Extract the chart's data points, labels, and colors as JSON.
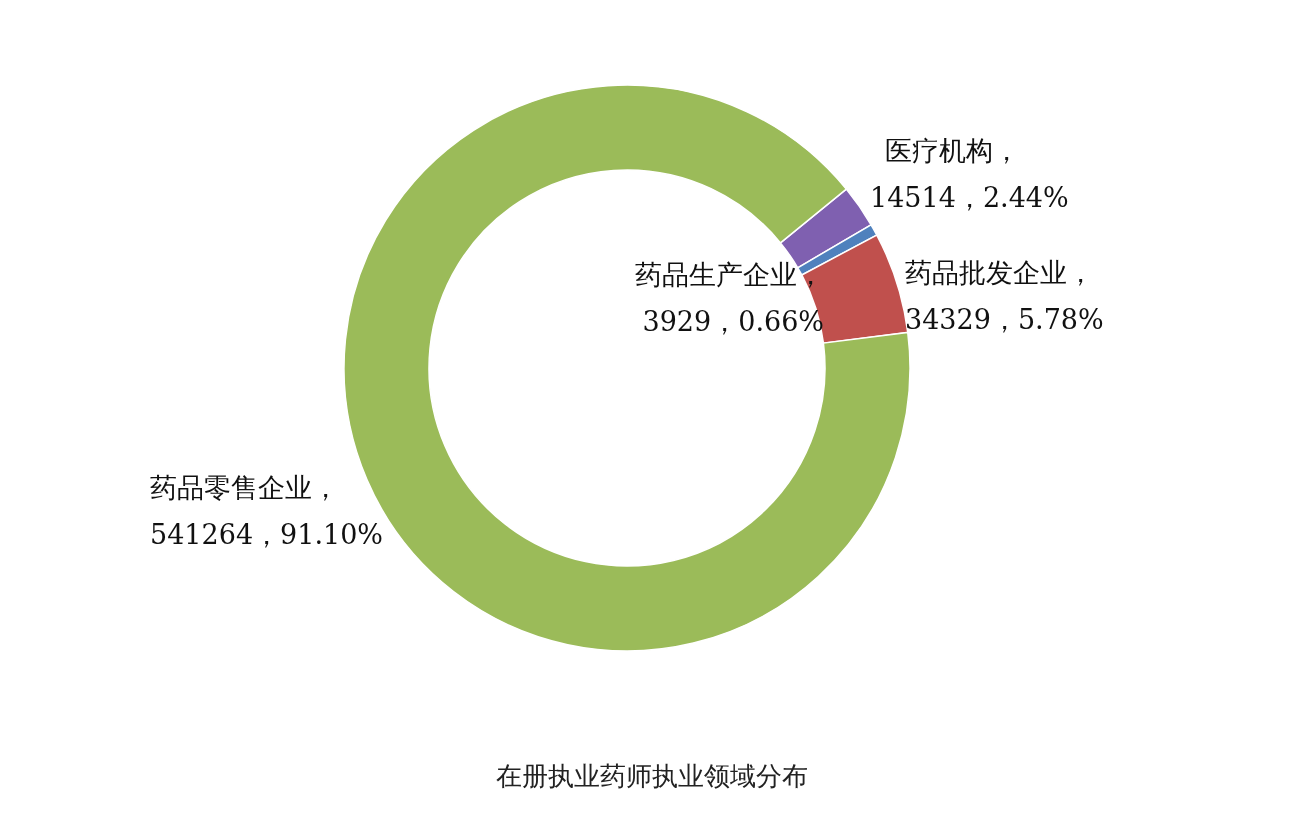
{
  "chart_data": {
    "type": "donut",
    "title": "在册执业药师执业领域分布",
    "categories": [
      "医疗机构",
      "药品生产企业",
      "药品批发企业",
      "药品零售企业"
    ],
    "values": [
      14514,
      3929,
      34329,
      541264
    ],
    "value_labels": [
      "，14514，2.44%",
      "，3929，0.66%",
      "，34329，5.78%",
      "，541264，91.10%"
    ],
    "colors": [
      "#7f60b0",
      "#4f81bd",
      "#c0504d",
      "#9bbb59"
    ],
    "legend": false
  }
}
